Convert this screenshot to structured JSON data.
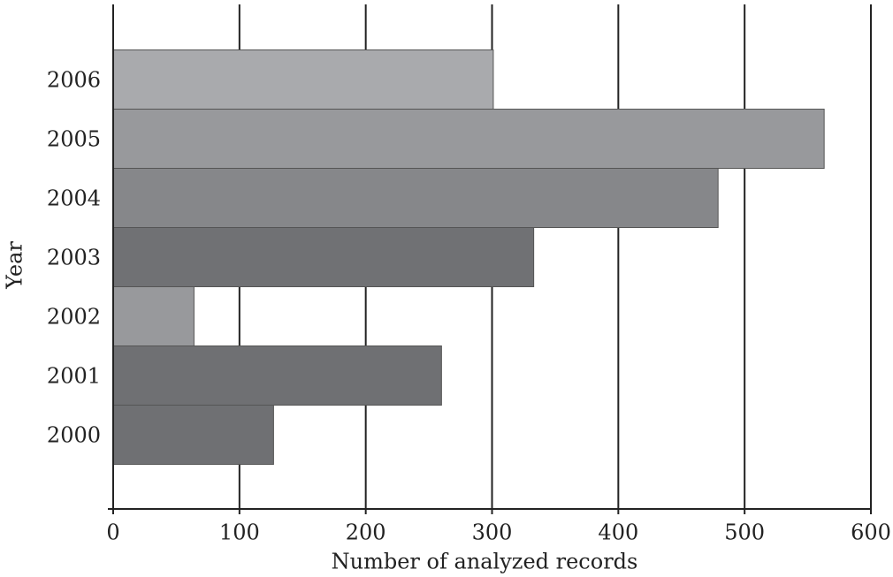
{
  "chart_data": {
    "type": "barh",
    "xlabel": "Number of analyzed records",
    "ylabel": "Year",
    "categories": [
      "2000",
      "2001",
      "2002",
      "2003",
      "2004",
      "2005",
      "2006"
    ],
    "values": [
      127,
      260,
      64,
      333,
      479,
      563,
      301
    ],
    "colors": [
      "#6f7073",
      "#6f7073",
      "#98999c",
      "#707174",
      "#86878a",
      "#98999c",
      "#a9aaad"
    ],
    "xlim": [
      0,
      600
    ],
    "xticks": [
      0,
      100,
      200,
      300,
      400,
      500,
      600
    ],
    "grid": true
  }
}
